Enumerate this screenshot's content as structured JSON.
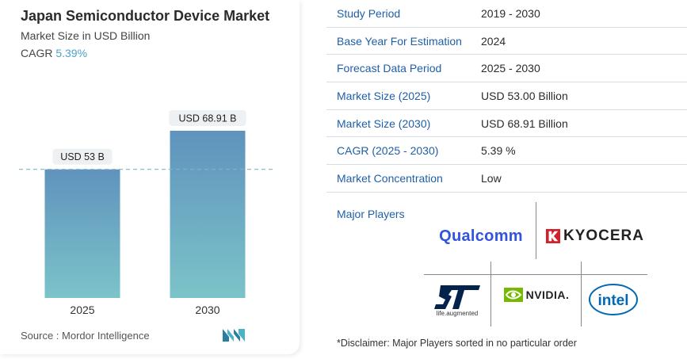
{
  "header": {
    "title": "Japan Semiconductor Device Market",
    "subtitle": "Market Size in USD Billion",
    "cagr_label": "CAGR",
    "cagr_value": "5.39%"
  },
  "chart_data": {
    "type": "bar",
    "categories": [
      "2025",
      "2030"
    ],
    "values": [
      53,
      68.91
    ],
    "data_labels": [
      "USD 53 B",
      "USD 68.91 B"
    ],
    "ylim": [
      0,
      80
    ],
    "reference_line": 53,
    "grid": false,
    "bar_gradient": [
      "#5f93bd",
      "#7cc3c9"
    ]
  },
  "source": {
    "label": "Source :",
    "name": "Mordor Intelligence"
  },
  "info": {
    "rows": [
      {
        "label": "Study Period",
        "value": "2019 - 2030"
      },
      {
        "label": "Base Year For Estimation",
        "value": "2024"
      },
      {
        "label": "Forecast Data Period",
        "value": "2025 - 2030"
      },
      {
        "label": "Market Size (2025)",
        "value": "USD 53.00 Billion"
      },
      {
        "label": "Market Size (2030)",
        "value": "USD 68.91 Billion"
      },
      {
        "label": "CAGR (2025 - 2030)",
        "value": "5.39 %"
      },
      {
        "label": "Market Concentration",
        "value": "Low"
      }
    ]
  },
  "players": {
    "label": "Major Players",
    "qualcomm": "Qualcomm",
    "kyocera": "KYOCERA",
    "st": "ST",
    "st_tagline": "life.augmented",
    "nvidia": "NVIDIA.",
    "intel": "intel"
  },
  "disclaimer": "*Disclaimer: Major Players sorted in no particular order",
  "colors": {
    "accent": "#1f5fa8",
    "cagr": "#4aa3c8",
    "qualcomm": "#3253dc",
    "kyocera": "#d3202f",
    "st": "#03234b",
    "nvidia": "#76b900",
    "intel": "#0068b5"
  }
}
